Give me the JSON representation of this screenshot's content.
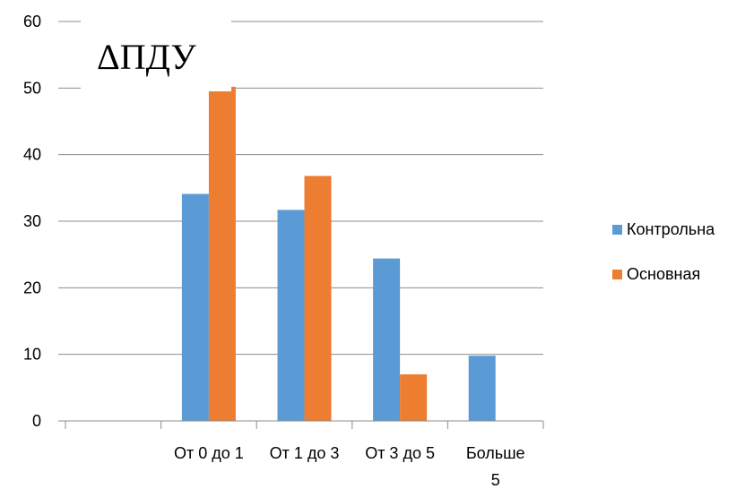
{
  "chart_data": {
    "type": "bar",
    "title": "ΔПДУ",
    "categories": [
      "",
      "От 0 до 1",
      "От 1 до 3",
      "От 3 до 5",
      "Больше 5"
    ],
    "category_label_lines": [
      [
        ""
      ],
      [
        "От 0 до 1"
      ],
      [
        "От 1 до 3"
      ],
      [
        "От 3 до 5"
      ],
      [
        "Больше",
        "5"
      ]
    ],
    "series": [
      {
        "name": "Контрольна",
        "color": "#5B9BD5",
        "values": [
          null,
          34.1,
          31.7,
          24.4,
          9.8
        ]
      },
      {
        "name": "Основная",
        "color": "#ED7D31",
        "values": [
          null,
          50.2,
          36.8,
          7.0,
          null
        ]
      }
    ],
    "ylim": [
      0,
      60
    ],
    "yticks": [
      0,
      10,
      20,
      30,
      40,
      50,
      60
    ],
    "grid": true,
    "legend_position": "right"
  }
}
